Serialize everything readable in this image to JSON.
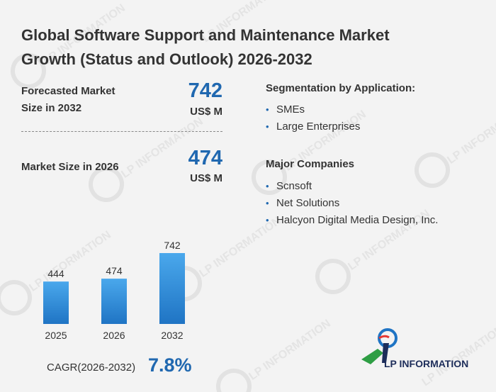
{
  "title": "Global Software Support and Maintenance Market Growth (Status and Outlook) 2026-2032",
  "forecast": {
    "label": "Forecasted Market Size in 2032",
    "value": "742",
    "unit": "US$ M"
  },
  "current": {
    "label": "Market Size in 2026",
    "value": "474",
    "unit": "US$ M"
  },
  "segmentation": {
    "heading": "Segmentation by Application:",
    "items": [
      "SMEs",
      "Large Enterprises"
    ]
  },
  "companies": {
    "heading": "Major Companies",
    "items": [
      "Scnsoft",
      "Net Solutions",
      "Halcyon Digital Media Design, Inc."
    ]
  },
  "cagr": {
    "label": "CAGR(2026-2032)",
    "value": "7.8%"
  },
  "brand": {
    "name": "LP INFORMATION",
    "watermark": "LP INFORMATION"
  },
  "colors": {
    "accent": "#2068b0",
    "bar_top": "#4aa8ec",
    "bar_bottom": "#1f74c4",
    "text": "#333333"
  },
  "chart_data": {
    "type": "bar",
    "categories": [
      "2025",
      "2026",
      "2032"
    ],
    "values": [
      444,
      474,
      742
    ],
    "ylim": [
      0,
      742
    ],
    "grid": false
  }
}
